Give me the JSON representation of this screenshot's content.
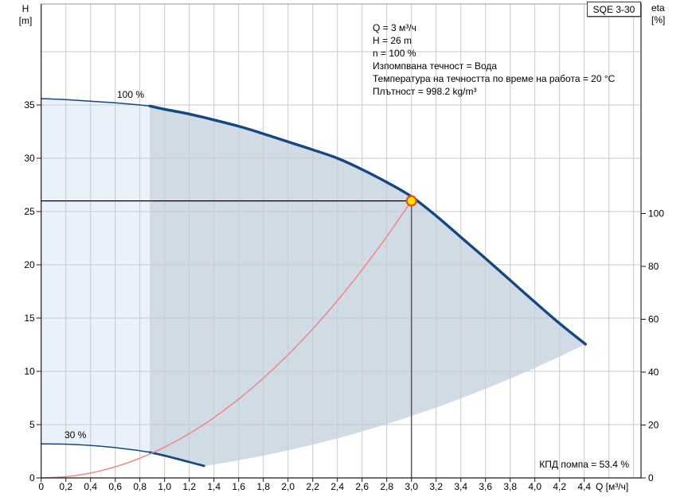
{
  "header": {
    "pump_name": "SQE 3-30"
  },
  "axes": {
    "left": {
      "title_top": "H",
      "title_bottom": "[m]"
    },
    "right": {
      "title_top": "eta",
      "title_bottom": "[%]"
    },
    "bottom": {
      "title": "Q [м³/ч]"
    }
  },
  "annotations": {
    "duty_flow": "Q = 3 м³/ч",
    "duty_head": "H = 26 m",
    "speed": "n = 100 %",
    "pumped_liquid": "Изпомпвана течност = Вода",
    "temperature": "Температура на течността по време на работа = 20 °C",
    "density": "Плътност = 998.2 kg/m³",
    "efficiency": "КПД помпа = 53.4 %"
  },
  "curve_labels": {
    "full_speed": "100 %",
    "min_speed": "30 %"
  },
  "chart_data": {
    "type": "line",
    "title": "SQE 3-30 pump performance curve",
    "xlabel": "Q [м³/ч]",
    "ylabel_left": "H [m]",
    "ylabel_right": "eta [%]",
    "xlim": [
      0,
      4.86
    ],
    "ylim_h": [
      0,
      44.5
    ],
    "ylim_eta": [
      0,
      119
    ],
    "grid": true,
    "x_tick_step": 0.2,
    "x_tick_labels": [
      "0",
      "0,2",
      "0,4",
      "0,6",
      "0,8",
      "1,0",
      "1,2",
      "1,4",
      "1,6",
      "1,8",
      "2,0",
      "2,2",
      "2,4",
      "2,6",
      "2,8",
      "3,0",
      "3,2",
      "3,4",
      "3,6",
      "3,8",
      "4,0",
      "4,2",
      "4,4"
    ],
    "h_ticks": [
      0,
      5,
      10,
      15,
      20,
      25,
      30,
      35
    ],
    "eta_ticks": [
      0,
      20,
      40,
      60,
      80,
      100
    ],
    "h_grid_step": 5,
    "h_grid_max": 40,
    "x_grid_max": 4.8,
    "envelope_min_q": 0.88,
    "duty_point": {
      "q": 3.0,
      "h": 26.0
    },
    "series": [
      {
        "name": "pump_curve_100",
        "label": "100 %",
        "bold_from": 0.88,
        "points": [
          [
            0,
            35.6
          ],
          [
            0.2,
            35.5
          ],
          [
            0.4,
            35.35
          ],
          [
            0.6,
            35.2
          ],
          [
            0.8,
            35.0
          ],
          [
            0.88,
            34.9
          ],
          [
            1.0,
            34.6
          ],
          [
            1.2,
            34.15
          ],
          [
            1.4,
            33.6
          ],
          [
            1.6,
            33.0
          ],
          [
            1.8,
            32.3
          ],
          [
            2.0,
            31.55
          ],
          [
            2.2,
            30.8
          ],
          [
            2.4,
            30.0
          ],
          [
            2.6,
            28.95
          ],
          [
            2.8,
            27.75
          ],
          [
            3.0,
            26.4
          ],
          [
            3.2,
            24.6
          ],
          [
            3.4,
            22.6
          ],
          [
            3.6,
            20.6
          ],
          [
            3.8,
            18.55
          ],
          [
            4.0,
            16.5
          ],
          [
            4.2,
            14.5
          ],
          [
            4.41,
            12.55
          ]
        ]
      },
      {
        "name": "pump_curve_30",
        "label": "30 %",
        "bold_from": 0.88,
        "points": [
          [
            0,
            3.2
          ],
          [
            0.15,
            3.18
          ],
          [
            0.3,
            3.11
          ],
          [
            0.45,
            3.0
          ],
          [
            0.6,
            2.84
          ],
          [
            0.75,
            2.63
          ],
          [
            0.88,
            2.4
          ],
          [
            1.05,
            1.95
          ],
          [
            1.2,
            1.49
          ],
          [
            1.32,
            1.13
          ]
        ]
      },
      {
        "name": "system_curve",
        "points": [
          [
            0,
            0
          ],
          [
            0.2,
            0.12
          ],
          [
            0.4,
            0.46
          ],
          [
            0.6,
            1.04
          ],
          [
            0.8,
            1.85
          ],
          [
            1.0,
            2.89
          ],
          [
            1.2,
            4.16
          ],
          [
            1.4,
            5.66
          ],
          [
            1.6,
            7.4
          ],
          [
            1.8,
            9.36
          ],
          [
            2.0,
            11.56
          ],
          [
            2.2,
            13.98
          ],
          [
            2.4,
            16.64
          ],
          [
            2.6,
            19.53
          ],
          [
            2.8,
            22.65
          ],
          [
            3.0,
            26.0
          ]
        ]
      },
      {
        "name": "operating_envelope_bottom",
        "points": [
          [
            1.32,
            1.12
          ],
          [
            1.4,
            1.26
          ],
          [
            1.6,
            1.65
          ],
          [
            1.8,
            2.09
          ],
          [
            2.0,
            2.58
          ],
          [
            2.2,
            3.12
          ],
          [
            2.4,
            3.71
          ],
          [
            2.6,
            4.36
          ],
          [
            2.8,
            5.06
          ],
          [
            3.0,
            5.81
          ],
          [
            3.2,
            6.6
          ],
          [
            3.4,
            7.46
          ],
          [
            3.6,
            8.36
          ],
          [
            3.8,
            9.31
          ],
          [
            4.0,
            10.32
          ],
          [
            4.2,
            11.38
          ],
          [
            4.41,
            12.55
          ]
        ]
      }
    ],
    "colors": {
      "curve": "#16477f",
      "fill_light": "#e9f1fa",
      "fill_dark": "#d0dbe6",
      "system_curve": "#f28080",
      "duty_marker_fill": "#ffe100",
      "duty_marker_stroke": "#e8491d",
      "grid": "#c7cacf",
      "axis": "#1a1a1a",
      "border_gray": "#7d7d7d",
      "duty_vline": "#5a5a5a"
    }
  }
}
